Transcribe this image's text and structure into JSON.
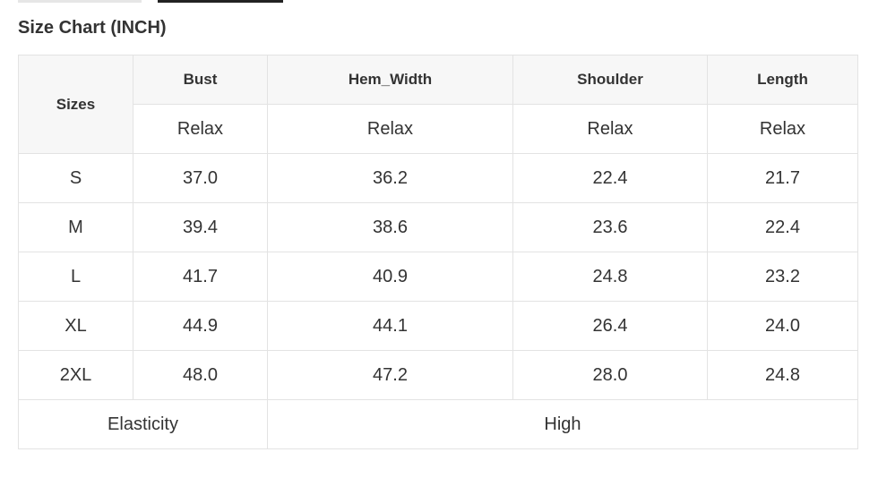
{
  "title": "Size Chart (INCH)",
  "table": {
    "header": {
      "sizes": "Sizes",
      "columns": [
        {
          "name": "Bust",
          "fit": "Relax"
        },
        {
          "name": "Hem_Width",
          "fit": "Relax"
        },
        {
          "name": "Shoulder",
          "fit": "Relax"
        },
        {
          "name": "Length",
          "fit": "Relax"
        }
      ]
    },
    "rows": [
      [
        "S",
        "37.0",
        "36.2",
        "22.4",
        "21.7"
      ],
      [
        "M",
        "39.4",
        "38.6",
        "23.6",
        "22.4"
      ],
      [
        "L",
        "41.7",
        "40.9",
        "24.8",
        "23.2"
      ],
      [
        "XL",
        "44.9",
        "44.1",
        "26.4",
        "24.0"
      ],
      [
        "2XL",
        "48.0",
        "47.2",
        "28.0",
        "24.8"
      ]
    ],
    "footer": [
      "Elasticity",
      "High"
    ]
  }
}
